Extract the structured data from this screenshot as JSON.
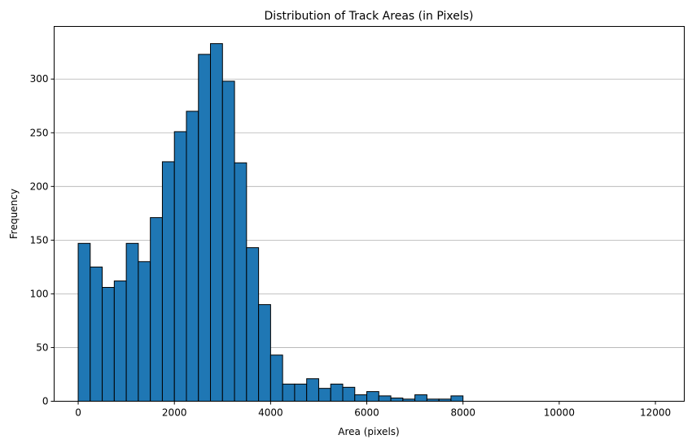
{
  "chart_data": {
    "type": "bar",
    "title": "Distribution of Track Areas (in Pixels)",
    "xlabel": "Area (pixels)",
    "ylabel": "Frequency",
    "bin_start": 0,
    "bin_width": 250,
    "values": [
      147,
      125,
      106,
      112,
      147,
      130,
      171,
      223,
      251,
      270,
      323,
      333,
      298,
      222,
      143,
      90,
      43,
      16,
      16,
      21,
      12,
      16,
      13,
      6,
      9,
      5,
      3,
      2,
      6,
      2,
      2,
      5,
      0,
      0,
      0,
      0,
      0,
      0,
      0,
      0,
      0,
      0,
      0,
      0,
      0,
      0,
      0,
      0
    ],
    "xlim": [
      -500,
      12600
    ],
    "ylim": [
      0,
      349
    ],
    "xticks": [
      0,
      2000,
      4000,
      6000,
      8000,
      10000,
      12000
    ],
    "xtick_labels": [
      "0",
      "2000",
      "4000",
      "6000",
      "8000",
      "10000",
      "12000"
    ],
    "yticks": [
      0,
      50,
      100,
      150,
      200,
      250,
      300
    ],
    "ytick_labels": [
      "0",
      "50",
      "100",
      "150",
      "200",
      "250",
      "300"
    ],
    "grid": "y",
    "bar_color": "#1f77b4",
    "edge_color": "#000000",
    "grid_color": "#b0b0b0"
  }
}
